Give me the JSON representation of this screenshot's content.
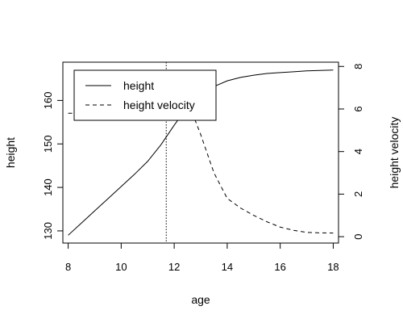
{
  "chart_data": {
    "type": "line",
    "title": "",
    "xlabel": "age",
    "ylabel": "height",
    "y2label": "height velocity",
    "xlim": [
      7.8,
      18.2
    ],
    "ylim": [
      127.2,
      168.8
    ],
    "y2lim": [
      -0.3,
      8.2
    ],
    "xticks": [
      "8",
      "10",
      "12",
      "14",
      "16",
      "18"
    ],
    "yticks": [
      "130",
      "140",
      "150",
      "160"
    ],
    "y2ticks": [
      "0",
      "2",
      "4",
      "6",
      "8"
    ],
    "grid": false,
    "legend": {
      "position": "top-left",
      "entries": [
        {
          "label": "height",
          "style": "solid"
        },
        {
          "label": "height velocity",
          "style": "dashed"
        }
      ]
    },
    "annotations": [
      {
        "type": "vline",
        "x": 11.7,
        "style": "dotted"
      }
    ],
    "series": [
      {
        "name": "height",
        "axis": "left",
        "style": "solid",
        "x": [
          8,
          8.5,
          9,
          9.5,
          10,
          10.5,
          11,
          11.5,
          12,
          12.5,
          13,
          13.5,
          14,
          14.5,
          15,
          15.5,
          16,
          16.5,
          17,
          17.5,
          18
        ],
        "y": [
          129.0,
          131.8,
          134.6,
          137.4,
          140.2,
          143.0,
          146.0,
          149.8,
          154.3,
          158.5,
          161.5,
          163.2,
          164.5,
          165.3,
          165.8,
          166.2,
          166.4,
          166.6,
          166.8,
          166.9,
          167.0
        ]
      },
      {
        "name": "height velocity",
        "axis": "right",
        "style": "dashed",
        "x": [
          8,
          8.5,
          9,
          9.5,
          10,
          10.5,
          11,
          11.3,
          11.6,
          11.8,
          12.0,
          12.2,
          12.5,
          13,
          13.5,
          14,
          14.5,
          15,
          15.5,
          16,
          16.5,
          17,
          17.5,
          18
        ],
        "y": [
          5.8,
          5.8,
          5.8,
          5.8,
          5.9,
          6.2,
          6.9,
          7.4,
          7.75,
          7.8,
          7.7,
          7.3,
          6.4,
          4.8,
          3.0,
          1.8,
          1.35,
          1.0,
          0.7,
          0.45,
          0.3,
          0.2,
          0.18,
          0.17
        ]
      }
    ]
  }
}
